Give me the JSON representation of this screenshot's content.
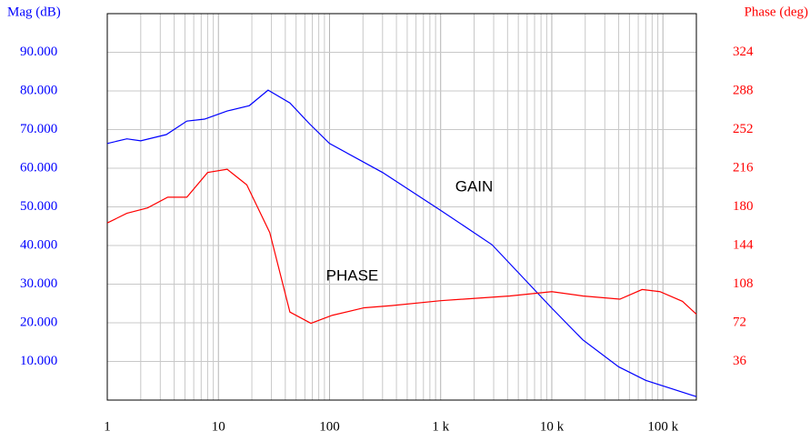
{
  "chart_data": {
    "type": "line",
    "y_label": "Mag (dB)",
    "y2_label": "Phase (deg)",
    "xscale": "log",
    "grid": true,
    "xlim": [
      1,
      200000
    ],
    "xticks": [
      1,
      10,
      100,
      {
        "value": 1000,
        "label": "1 k"
      },
      {
        "value": 10000,
        "label": "10 k"
      },
      {
        "value": 100000,
        "label": "100 k"
      }
    ],
    "ylim": [
      0,
      100
    ],
    "yticks": [
      {
        "value": 10,
        "label": "10.000"
      },
      {
        "value": 20,
        "label": "20.000"
      },
      {
        "value": 30,
        "label": "30.000"
      },
      {
        "value": 40,
        "label": "40.000"
      },
      {
        "value": 50,
        "label": "50.000"
      },
      {
        "value": 60,
        "label": "60.000"
      },
      {
        "value": 70,
        "label": "70.000"
      },
      {
        "value": 80,
        "label": "80.000"
      },
      {
        "value": 90,
        "label": "90.000"
      }
    ],
    "y2lim": [
      0,
      360
    ],
    "y2ticks": [
      36,
      72,
      108,
      144,
      180,
      216,
      252,
      288,
      324
    ],
    "y_color": "#0000ff",
    "y2_color": "#ff0000",
    "annotations": [
      {
        "text": "GAIN",
        "x": 2000,
        "y": 55
      },
      {
        "text": "PHASE",
        "x": 160,
        "y": 32
      }
    ],
    "series": [
      {
        "name": "GAIN",
        "color": "#0000ff",
        "x": [
          1,
          1.5,
          2,
          3.4,
          5.2,
          7.5,
          12,
          19,
          28,
          44,
          66,
          100,
          300,
          1000,
          2900,
          10000,
          19000,
          40000,
          70000,
          200000
        ],
        "values": [
          66.4,
          67.6,
          67.1,
          68.7,
          72.2,
          72.7,
          74.8,
          76.2,
          80.2,
          76.9,
          71.5,
          66.4,
          58.9,
          49.1,
          40.2,
          23.8,
          15.6,
          8.6,
          5.1,
          0.9
        ]
      },
      {
        "name": "PHASE",
        "color": "#ff0000",
        "axis": "y2",
        "x": [
          1,
          1.5,
          2.3,
          3.5,
          5.2,
          8,
          12,
          18,
          29,
          44,
          68,
          106,
          205,
          360,
          1000,
          4200,
          10000,
          19000,
          41000,
          65000,
          94000,
          150000,
          200000
        ],
        "values": [
          165,
          174,
          179,
          189,
          189,
          212,
          215,
          200.5,
          156,
          82,
          71.5,
          79,
          86,
          88,
          92.6,
          97,
          101,
          97,
          94,
          103,
          101,
          92,
          80
        ]
      }
    ]
  }
}
